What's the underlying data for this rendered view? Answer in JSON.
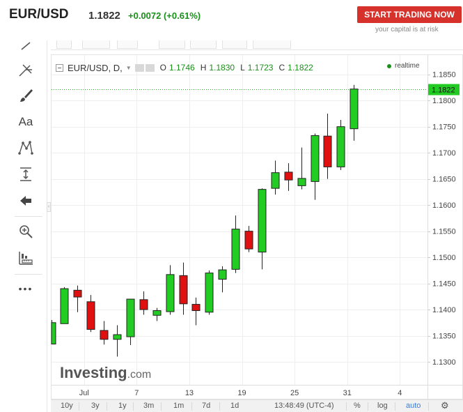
{
  "header": {
    "symbol": "EUR/USD",
    "price": "1.1822",
    "change": "+0.0072 (+0.61%)",
    "trade_button": "START TRADING NOW",
    "risk_note": "your capital is at risk"
  },
  "toolbar": {
    "tools": [
      {
        "name": "line-tool-icon"
      },
      {
        "name": "pitchfork-icon"
      },
      {
        "name": "brush-icon"
      },
      {
        "name": "text-tool",
        "label": "Aa"
      },
      {
        "name": "pattern-icon"
      },
      {
        "name": "measure-icon"
      },
      {
        "name": "arrow-left-icon"
      },
      {
        "name": "zoom-icon"
      },
      {
        "name": "ruler-icon"
      },
      {
        "name": "more-icon",
        "label": "•••"
      }
    ]
  },
  "legend": {
    "symbol": "EUR/USD, D,",
    "o_label": "O",
    "o_value": "1.1746",
    "h_label": "H",
    "h_value": "1.1830",
    "l_label": "L",
    "l_value": "1.1723",
    "c_label": "C",
    "c_value": "1.1822",
    "realtime": "realtime"
  },
  "watermark": {
    "brand": "Investing",
    "suffix": ".com"
  },
  "colors": {
    "up": "#22cc22",
    "down": "#e01010",
    "accent": "#d6312b",
    "positive_text": "#1a8f1a"
  },
  "bottom_bar": {
    "ranges": [
      "10y",
      "3y",
      "1y",
      "3m",
      "1m",
      "7d",
      "1d"
    ],
    "time": "13:48:49 (UTC-4)",
    "percent": "%",
    "log": "log",
    "auto": "auto"
  },
  "chart_data": {
    "type": "candlestick",
    "y_range": [
      1.1256,
      1.1887
    ],
    "y_ticks": [
      "1.1850",
      "1.1800",
      "1.1750",
      "1.1700",
      "1.1650",
      "1.1600",
      "1.1550",
      "1.1500",
      "1.1450",
      "1.1400",
      "1.1350",
      "1.1300"
    ],
    "x_ticks": [
      {
        "label": "Jul",
        "day_index": 2.5
      },
      {
        "label": "7",
        "day_index": 6.5
      },
      {
        "label": "13",
        "day_index": 10.5
      },
      {
        "label": "19",
        "day_index": 14.5
      },
      {
        "label": "25",
        "day_index": 18.5
      },
      {
        "label": "31",
        "day_index": 22.5
      },
      {
        "label": "4",
        "day_index": 26.5
      }
    ],
    "last_price": "1.1822",
    "last_value": 1.1822,
    "candles": [
      {
        "o": 1.1334,
        "h": 1.138,
        "l": 1.1334,
        "c": 1.1375
      },
      {
        "o": 1.1373,
        "h": 1.1443,
        "l": 1.1373,
        "c": 1.144
      },
      {
        "o": 1.1437,
        "h": 1.1446,
        "l": 1.1395,
        "c": 1.1424
      },
      {
        "o": 1.1415,
        "h": 1.1428,
        "l": 1.1357,
        "c": 1.1362
      },
      {
        "o": 1.136,
        "h": 1.1378,
        "l": 1.1333,
        "c": 1.1343
      },
      {
        "o": 1.1343,
        "h": 1.137,
        "l": 1.131,
        "c": 1.1352
      },
      {
        "o": 1.1348,
        "h": 1.142,
        "l": 1.1332,
        "c": 1.142
      },
      {
        "o": 1.1419,
        "h": 1.1435,
        "l": 1.139,
        "c": 1.14
      },
      {
        "o": 1.1389,
        "h": 1.1403,
        "l": 1.1378,
        "c": 1.1398
      },
      {
        "o": 1.1396,
        "h": 1.1485,
        "l": 1.139,
        "c": 1.1467
      },
      {
        "o": 1.1465,
        "h": 1.149,
        "l": 1.139,
        "c": 1.1411
      },
      {
        "o": 1.141,
        "h": 1.1423,
        "l": 1.137,
        "c": 1.1398
      },
      {
        "o": 1.1395,
        "h": 1.1475,
        "l": 1.139,
        "c": 1.147
      },
      {
        "o": 1.1458,
        "h": 1.1483,
        "l": 1.1433,
        "c": 1.1476
      },
      {
        "o": 1.1477,
        "h": 1.158,
        "l": 1.147,
        "c": 1.1554
      },
      {
        "o": 1.155,
        "h": 1.156,
        "l": 1.151,
        "c": 1.1516
      },
      {
        "o": 1.151,
        "h": 1.1632,
        "l": 1.1477,
        "c": 1.163
      },
      {
        "o": 1.1632,
        "h": 1.1685,
        "l": 1.162,
        "c": 1.1662
      },
      {
        "o": 1.1663,
        "h": 1.168,
        "l": 1.1627,
        "c": 1.1648
      },
      {
        "o": 1.1637,
        "h": 1.171,
        "l": 1.163,
        "c": 1.1651
      },
      {
        "o": 1.1645,
        "h": 1.1737,
        "l": 1.161,
        "c": 1.1733
      },
      {
        "o": 1.1732,
        "h": 1.1775,
        "l": 1.165,
        "c": 1.1673
      },
      {
        "o": 1.1673,
        "h": 1.1763,
        "l": 1.1667,
        "c": 1.175
      },
      {
        "o": 1.1746,
        "h": 1.183,
        "l": 1.1723,
        "c": 1.1822
      }
    ]
  }
}
